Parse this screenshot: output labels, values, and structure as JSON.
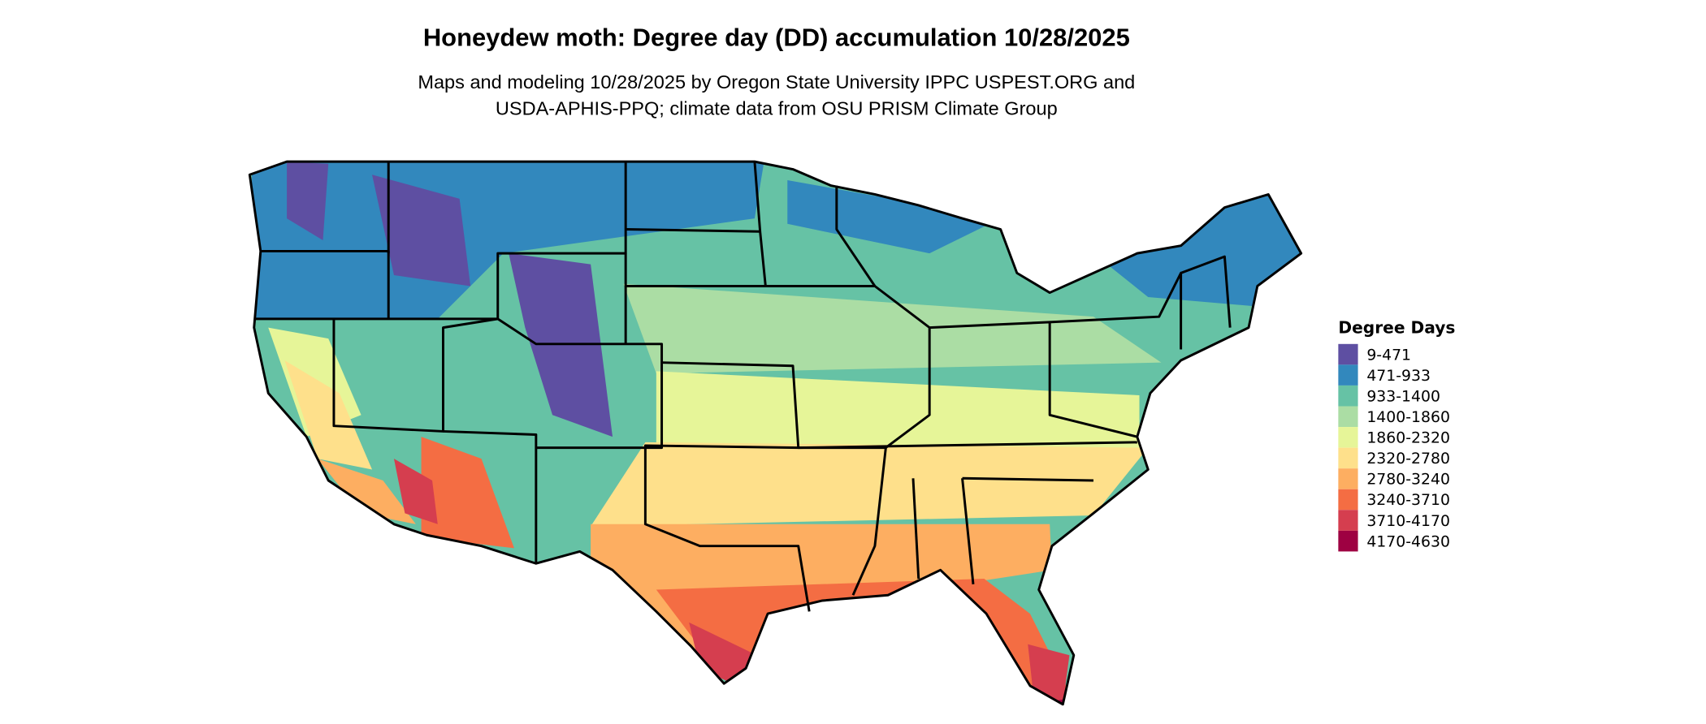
{
  "title": "Honeydew moth: Degree day (DD) accumulation 10/28/2025",
  "subtitle_line1": "Maps and modeling 10/28/2025 by Oregon State University IPPC USPEST.ORG and",
  "subtitle_line2": "USDA-APHIS-PPQ; climate data from OSU PRISM Climate Group",
  "legend": {
    "title": "Degree Days",
    "items": [
      {
        "label": "9-471",
        "color": "#5e4fa2"
      },
      {
        "label": "471-933",
        "color": "#3288bd"
      },
      {
        "label": "933-1400",
        "color": "#66c2a5"
      },
      {
        "label": "1400-1860",
        "color": "#abdda4"
      },
      {
        "label": "1860-2320",
        "color": "#e6f598"
      },
      {
        "label": "2320-2780",
        "color": "#fee08b"
      },
      {
        "label": "2780-3240",
        "color": "#fdae61"
      },
      {
        "label": "3240-3710",
        "color": "#f46d43"
      },
      {
        "label": "3710-4170",
        "color": "#d53e4f"
      },
      {
        "label": "4170-4630",
        "color": "#9e0142"
      }
    ]
  }
}
